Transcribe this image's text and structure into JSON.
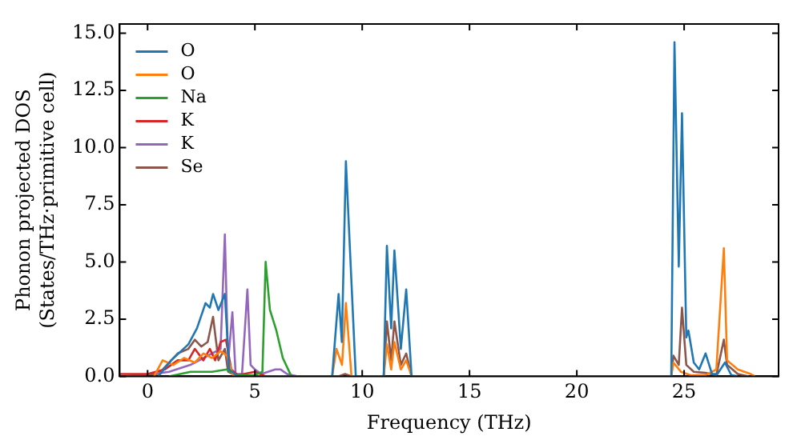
{
  "chart_data": {
    "type": "line",
    "xlabel": "Frequency (THz)",
    "ylabel": "Phonon projected DOS\n(States/THz·primitive cell)",
    "xlim": [
      -1.3,
      29.4
    ],
    "ylim": [
      0,
      15.4
    ],
    "xticks": [
      0,
      5,
      10,
      15,
      20,
      25
    ],
    "yticks": [
      {
        "value": 0,
        "label": "0.0"
      },
      {
        "value": 2.5,
        "label": "2.5"
      },
      {
        "value": 5,
        "label": "5.0"
      },
      {
        "value": 7.5,
        "label": "7.5"
      },
      {
        "value": 10,
        "label": "10.0"
      },
      {
        "value": 12.5,
        "label": "12.5"
      },
      {
        "value": 15,
        "label": "15.0"
      }
    ],
    "grid": false,
    "legend": "top left",
    "marker": "none",
    "line_style": "solid",
    "series": [
      {
        "name": "O",
        "color": "#1f77b4",
        "x": [
          0.5,
          1.1,
          1.9,
          2.3,
          2.7,
          2.9,
          3.05,
          3.3,
          3.6,
          3.8,
          4.2,
          8.6,
          8.9,
          9.05,
          9.24,
          9.7,
          11.0,
          11.15,
          11.35,
          11.5,
          11.8,
          12.05,
          12.3,
          24.4,
          24.55,
          24.75,
          24.9,
          25.1,
          25.2,
          25.45,
          25.7,
          26.0,
          26.3,
          26.55,
          26.9,
          27.2,
          27.5
        ],
        "values": [
          0,
          0.7,
          1.4,
          2.1,
          3.2,
          3.0,
          3.6,
          2.9,
          3.6,
          0.3,
          0,
          0,
          3.6,
          1.5,
          9.4,
          0,
          0,
          5.7,
          2.1,
          5.5,
          1.2,
          3.8,
          0,
          0,
          14.6,
          4.8,
          11.5,
          1.7,
          2.0,
          0.6,
          0.3,
          1.0,
          0.1,
          0.1,
          0.6,
          0.05,
          0
        ]
      },
      {
        "name": "O",
        "color": "#ff7f0e",
        "x": [
          0.3,
          0.7,
          1.2,
          1.7,
          2.2,
          2.6,
          3.0,
          3.4,
          3.7,
          4.0,
          8.6,
          8.8,
          9.06,
          9.24,
          9.5,
          11.0,
          11.15,
          11.35,
          11.5,
          11.8,
          12.05,
          12.3,
          24.4,
          24.5,
          24.85,
          25.3,
          26.0,
          26.5,
          26.85,
          27.0,
          27.5,
          28.1,
          28.3
        ],
        "values": [
          0,
          0.7,
          0.5,
          0.8,
          0.6,
          1.0,
          0.8,
          1.1,
          0.9,
          0,
          0,
          1.2,
          0.5,
          3.2,
          0,
          0,
          1.4,
          0.3,
          1.5,
          0.3,
          0.7,
          0,
          0,
          0.6,
          0.2,
          0.05,
          0.05,
          0.3,
          5.6,
          0.7,
          0.3,
          0.1,
          0
        ]
      },
      {
        "name": "Na",
        "color": "#2ca02c",
        "x": [
          1.0,
          2.0,
          3.0,
          3.7,
          4.1,
          5.0,
          5.35,
          5.5,
          5.7,
          6.0,
          6.3,
          6.7
        ],
        "values": [
          0,
          0.2,
          0.2,
          0.3,
          0.05,
          0.05,
          0.2,
          5.0,
          2.9,
          2.0,
          0.8,
          0
        ]
      },
      {
        "name": "K",
        "color": "#d62728",
        "x": [
          -1.3,
          0,
          0.8,
          1.4,
          1.9,
          2.2,
          2.6,
          2.9,
          3.15,
          3.4,
          3.65,
          3.9,
          4.2,
          5.0,
          5.5
        ],
        "values": [
          0.1,
          0.1,
          0.3,
          0.7,
          0.7,
          1.2,
          0.7,
          1.2,
          0.7,
          1.5,
          1.6,
          0.3,
          0.05,
          0.2,
          0
        ]
      },
      {
        "name": "K",
        "color": "#9467bd",
        "x": [
          0.3,
          1.0,
          2.0,
          3.0,
          3.4,
          3.6,
          3.75,
          3.95,
          4.1,
          4.4,
          4.65,
          4.8,
          5.0,
          5.3,
          5.95,
          6.2,
          6.5,
          7.0
        ],
        "values": [
          0.1,
          0.2,
          0.5,
          1.0,
          1.2,
          6.2,
          0.6,
          2.8,
          0.1,
          0.1,
          3.8,
          0.5,
          0.3,
          0.1,
          0.3,
          0.3,
          0.1,
          0
        ]
      },
      {
        "name": "Se",
        "color": "#8c564b",
        "x": [
          -1.3,
          0.5,
          1.4,
          1.9,
          2.2,
          2.5,
          2.8,
          3.05,
          3.3,
          3.6,
          3.75,
          4.2,
          8.9,
          9.2,
          9.5,
          11.0,
          11.15,
          11.35,
          11.5,
          11.8,
          12.05,
          12.3,
          24.4,
          24.5,
          24.75,
          24.9,
          25.1,
          25.45,
          26.0,
          26.5,
          26.85,
          27.0,
          27.5,
          28.0
        ],
        "values": [
          0,
          0.1,
          1.0,
          1.2,
          1.6,
          1.3,
          1.5,
          2.6,
          0.7,
          1.2,
          0.2,
          0,
          0,
          0.1,
          0,
          0,
          2.4,
          0.7,
          2.4,
          0.5,
          1.0,
          0,
          0,
          0.9,
          0.5,
          3.0,
          0.5,
          0.2,
          0.15,
          0.05,
          1.6,
          0.5,
          0.1,
          0
        ]
      }
    ]
  }
}
